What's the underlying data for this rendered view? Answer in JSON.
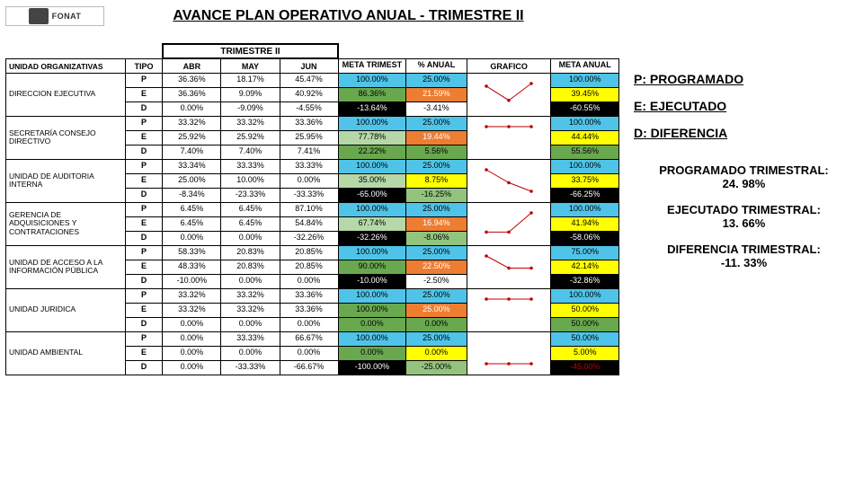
{
  "title": "AVANCE PLAN OPERATIVO ANUAL  - TRIMESTRE II",
  "logo_text": "FONAT",
  "headers": {
    "unit": "UNIDAD ORGANIZATIVAS",
    "tipo": "TIPO",
    "trim": "TRIMESTRE II",
    "abr": "ABR",
    "may": "MAY",
    "jun": "JUN",
    "meta_t": "META TRIMEST",
    "pct_anual": "% ANUAL",
    "grafico": "GRAFICO",
    "meta_anual": "META ANUAL"
  },
  "colors": {
    "cyan": "#4fc4e8",
    "yellow": "#ffff00",
    "green_dk": "#6aa84f",
    "green_lt": "#b6d7a8",
    "green_neg": "#93c47d",
    "orange": "#ed7d31",
    "black": "#000000",
    "white": "#ffffff",
    "red_text": "#c00000"
  },
  "legend": {
    "p": "P: PROGRAMADO",
    "e": "E: EJECUTADO",
    "d": "D: DIFERENCIA"
  },
  "stats": [
    {
      "label": "PROGRAMADO TRIMESTRAL:",
      "val": "24. 98%"
    },
    {
      "label": "EJECUTADO TRIMESTRAL:",
      "val": "13. 66%"
    },
    {
      "label": "DIFERENCIA TRIMESTRAL:",
      "val": "-11. 33%"
    }
  ],
  "units": [
    {
      "name": "DIRECCION EJECUTIVA",
      "rows": [
        {
          "tipo": "P",
          "abr": "36.36%",
          "may": "18.17%",
          "jun": "45.47%",
          "meta": "100.00%",
          "meta_bg": "cyan",
          "anu": "25.00%",
          "anu_bg": "cyan",
          "meta2": "100.00%",
          "meta2_bg": "cyan"
        },
        {
          "tipo": "E",
          "abr": "36.36%",
          "may": "9.09%",
          "jun": "40.92%",
          "meta": "86.36%",
          "meta_bg": "green_dk",
          "anu": "21.59%",
          "anu_bg": "orange",
          "anu_fg": "white",
          "meta2": "39.45%",
          "meta2_bg": "yellow"
        },
        {
          "tipo": "D",
          "abr": "0.00%",
          "may": "-9.09%",
          "jun": "-4.55%",
          "meta": "-13.64%",
          "meta_bg": "black",
          "meta_fg": "white",
          "anu": "-3.41%",
          "anu_bg": "",
          "meta2": "-60.55%",
          "meta2_bg": "black",
          "meta2_fg": "white"
        }
      ],
      "spark": [
        36,
        9,
        41
      ]
    },
    {
      "name": "SECRETARÍA CONSEJO DIRECTIVO",
      "rows": [
        {
          "tipo": "P",
          "abr": "33.32%",
          "may": "33.32%",
          "jun": "33.36%",
          "meta": "100.00%",
          "meta_bg": "cyan",
          "anu": "25.00%",
          "anu_bg": "cyan",
          "meta2": "100.00%",
          "meta2_bg": "cyan"
        },
        {
          "tipo": "E",
          "abr": "25.92%",
          "may": "25.92%",
          "jun": "25.95%",
          "meta": "77.78%",
          "meta_bg": "green_lt",
          "anu": "19.44%",
          "anu_bg": "orange",
          "anu_fg": "white",
          "meta2": "44.44%",
          "meta2_bg": "yellow"
        },
        {
          "tipo": "D",
          "abr": "7.40%",
          "may": "7.40%",
          "jun": "7.41%",
          "meta": "22.22%",
          "meta_bg": "green_dk",
          "anu": "5.56%",
          "anu_bg": "green_dk",
          "meta2": "55.56%",
          "meta2_bg": "green_dk"
        }
      ],
      "spark": [
        26,
        26,
        26
      ]
    },
    {
      "name": "UNIDAD DE AUDITORIA INTERNA",
      "rows": [
        {
          "tipo": "P",
          "abr": "33.34%",
          "may": "33.33%",
          "jun": "33.33%",
          "meta": "100.00%",
          "meta_bg": "cyan",
          "anu": "25.00%",
          "anu_bg": "cyan",
          "meta2": "100.00%",
          "meta2_bg": "cyan"
        },
        {
          "tipo": "E",
          "abr": "25.00%",
          "may": "10.00%",
          "jun": "0.00%",
          "meta": "35.00%",
          "meta_bg": "green_lt",
          "anu": "8.75%",
          "anu_bg": "yellow",
          "meta2": "33.75%",
          "meta2_bg": "yellow"
        },
        {
          "tipo": "D",
          "abr": "-8.34%",
          "may": "-23.33%",
          "jun": "-33.33%",
          "meta": "-65.00%",
          "meta_bg": "black",
          "meta_fg": "white",
          "anu": "-16.25%",
          "anu_bg": "green_neg",
          "meta2": "-66.25%",
          "meta2_bg": "black",
          "meta2_fg": "white"
        }
      ],
      "spark": [
        25,
        10,
        0
      ]
    },
    {
      "name": "GERENCIA DE ADQUISICIONES Y CONTRATACIONES",
      "rows": [
        {
          "tipo": "P",
          "abr": "6.45%",
          "may": "6.45%",
          "jun": "87.10%",
          "meta": "100.00%",
          "meta_bg": "cyan",
          "anu": "25.00%",
          "anu_bg": "cyan",
          "meta2": "100.00%",
          "meta2_bg": "cyan"
        },
        {
          "tipo": "E",
          "abr": "6.45%",
          "may": "6.45%",
          "jun": "54.84%",
          "meta": "67.74%",
          "meta_bg": "green_lt",
          "anu": "16.94%",
          "anu_bg": "orange",
          "anu_fg": "white",
          "meta2": "41.94%",
          "meta2_bg": "yellow"
        },
        {
          "tipo": "D",
          "abr": "0.00%",
          "may": "0.00%",
          "jun": "-32.26%",
          "meta": "-32.26%",
          "meta_bg": "black",
          "meta_fg": "white",
          "anu": "-8.06%",
          "anu_bg": "green_neg",
          "meta2": "-58.06%",
          "meta2_bg": "black",
          "meta2_fg": "white"
        }
      ],
      "spark": [
        6,
        6,
        55
      ]
    },
    {
      "name": "UNIDAD DE ACCESO A LA INFORMACIÓN PÚBLICA",
      "rows": [
        {
          "tipo": "P",
          "abr": "58.33%",
          "may": "20.83%",
          "jun": "20.85%",
          "meta": "100.00%",
          "meta_bg": "cyan",
          "anu": "25.00%",
          "anu_bg": "cyan",
          "meta2": "75.00%",
          "meta2_bg": "cyan"
        },
        {
          "tipo": "E",
          "abr": "48.33%",
          "may": "20.83%",
          "jun": "20.85%",
          "meta": "90.00%",
          "meta_bg": "green_dk",
          "anu": "22.50%",
          "anu_bg": "orange",
          "anu_fg": "white",
          "meta2": "42.14%",
          "meta2_bg": "yellow"
        },
        {
          "tipo": "D",
          "abr": "-10.00%",
          "may": "0.00%",
          "jun": "0.00%",
          "meta": "-10.00%",
          "meta_bg": "black",
          "meta_fg": "white",
          "anu": "-2.50%",
          "anu_bg": "",
          "meta2": "-32.86%",
          "meta2_bg": "black",
          "meta2_fg": "white"
        }
      ],
      "spark": [
        48,
        21,
        21
      ]
    },
    {
      "name": "UNIDAD JURIDICA",
      "rows": [
        {
          "tipo": "P",
          "abr": "33.32%",
          "may": "33.32%",
          "jun": "33.36%",
          "meta": "100.00%",
          "meta_bg": "cyan",
          "anu": "25.00%",
          "anu_bg": "cyan",
          "meta2": "100.00%",
          "meta2_bg": "cyan"
        },
        {
          "tipo": "E",
          "abr": "33.32%",
          "may": "33.32%",
          "jun": "33.36%",
          "meta": "100.00%",
          "meta_bg": "green_dk",
          "anu": "25.00%",
          "anu_bg": "orange",
          "anu_fg": "white",
          "meta2": "50.00%",
          "meta2_bg": "yellow"
        },
        {
          "tipo": "D",
          "abr": "0.00%",
          "may": "0.00%",
          "jun": "0.00%",
          "meta": "0.00%",
          "meta_bg": "green_dk",
          "anu": "0.00%",
          "anu_bg": "green_dk",
          "meta2": "50.00%",
          "meta2_bg": "green_dk"
        }
      ],
      "spark": [
        33,
        33,
        33
      ]
    },
    {
      "name": "UNIDAD AMBIENTAL",
      "rows": [
        {
          "tipo": "P",
          "abr": "0.00%",
          "may": "33.33%",
          "jun": "66.67%",
          "meta": "100.00%",
          "meta_bg": "cyan",
          "anu": "25.00%",
          "anu_bg": "cyan",
          "meta2": "50.00%",
          "meta2_bg": "cyan"
        },
        {
          "tipo": "E",
          "abr": "0.00%",
          "may": "0.00%",
          "jun": "0.00%",
          "meta": "0.00%",
          "meta_bg": "green_dk",
          "anu": "0.00%",
          "anu_bg": "yellow",
          "meta2": "5.00%",
          "meta2_bg": "yellow"
        },
        {
          "tipo": "D",
          "abr": "0.00%",
          "may": "-33.33%",
          "jun": "-66.67%",
          "meta": "-100.00%",
          "meta_bg": "black",
          "meta_fg": "white",
          "anu": "-25.00%",
          "anu_bg": "green_neg",
          "meta2": "-45.00%",
          "meta2_bg": "black",
          "meta2_fg": "red_text"
        }
      ],
      "spark": [
        0,
        0,
        0
      ]
    }
  ]
}
